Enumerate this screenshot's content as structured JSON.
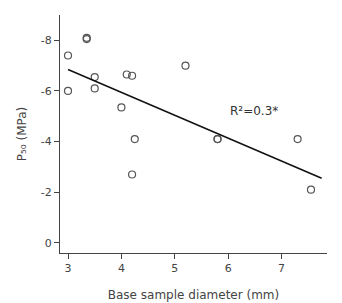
{
  "chart_data": {
    "type": "scatter",
    "series": [
      {
        "type": "scatter",
        "color": "#555555",
        "marker": "circle-open",
        "x": [
          3.0,
          3.0,
          3.35,
          3.35,
          3.5,
          3.5,
          4.0,
          4.1,
          4.2,
          4.25,
          4.2,
          5.2,
          5.8,
          5.8,
          7.3,
          7.55
        ],
        "values": [
          -7.4,
          -6.0,
          -8.1,
          -8.05,
          -6.55,
          -6.1,
          -5.35,
          -6.65,
          -6.6,
          -4.1,
          -2.7,
          -7.0,
          -4.1,
          -4.1,
          -4.1,
          -2.1
        ]
      },
      {
        "type": "line",
        "color": "#111111",
        "line_style": "solid",
        "x": [
          3.0,
          7.75
        ],
        "values": [
          -6.85,
          -2.55
        ]
      }
    ],
    "annotations": [
      {
        "text": "R²=0.3*",
        "x": 6.0,
        "y": -5.2
      }
    ],
    "x_label": "Base sample diameter (mm)",
    "y_label": "P₅₀ (MPa)",
    "xlim": [
      2.85,
      7.85
    ],
    "ylim": [
      0.4,
      -9.0
    ],
    "xticks": [
      3,
      4,
      5,
      6,
      7
    ],
    "yticks": [
      0,
      -2,
      -4,
      -6,
      -8
    ],
    "grid": false
  }
}
